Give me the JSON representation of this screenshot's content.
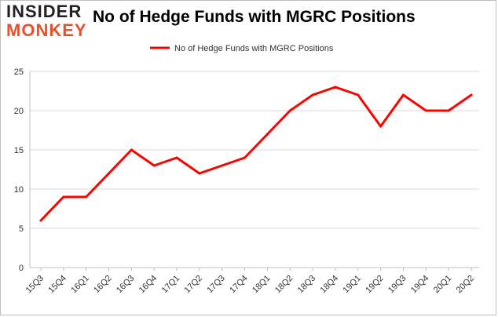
{
  "logo": {
    "line1": "INSIDER",
    "line2": "MONKEY"
  },
  "chart_data": {
    "type": "line",
    "title": "No of Hedge Funds with MGRC Positions",
    "xlabel": "",
    "ylabel": "",
    "categories": [
      "15Q3",
      "15Q4",
      "16Q1",
      "16Q2",
      "16Q3",
      "16Q4",
      "17Q1",
      "17Q2",
      "17Q3",
      "17Q4",
      "18Q1",
      "18Q2",
      "18Q3",
      "18Q4",
      "19Q1",
      "19Q2",
      "19Q3",
      "19Q4",
      "20Q1",
      "20Q2"
    ],
    "series": [
      {
        "name": "No of Hedge Funds with MGRC Positions",
        "color": "#ff0000",
        "values": [
          6,
          9,
          9,
          12,
          15,
          13,
          14,
          12,
          13,
          14,
          17,
          20,
          22,
          23,
          22,
          18,
          22,
          20,
          20,
          22
        ]
      }
    ],
    "ylim": [
      0,
      25
    ],
    "yticks": [
      0,
      5,
      10,
      15,
      20,
      25
    ],
    "grid": true,
    "legend": "top-center"
  }
}
